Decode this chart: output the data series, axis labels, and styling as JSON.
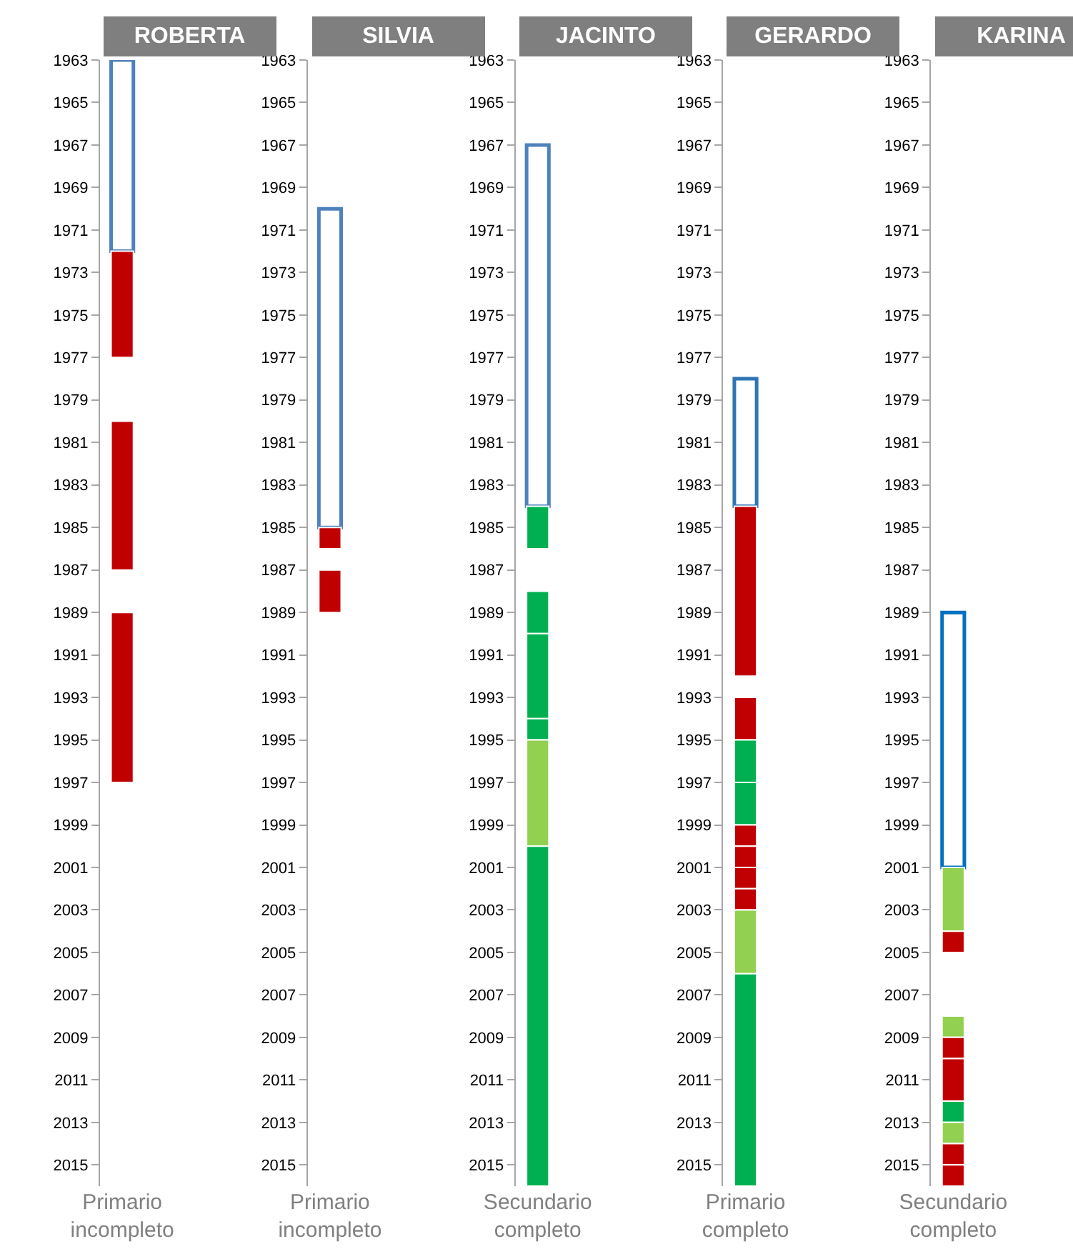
{
  "chart_data": [
    {
      "type": "bar",
      "title": "ROBERTA",
      "categories": [
        "Primario incompleto"
      ],
      "ylim": [
        2016,
        1963
      ],
      "yticks": [
        1963,
        1965,
        1967,
        1969,
        1971,
        1973,
        1975,
        1977,
        1979,
        1981,
        1983,
        1985,
        1987,
        1989,
        1991,
        1993,
        1995,
        1997,
        1999,
        2001,
        2003,
        2005,
        2007,
        2009,
        2011,
        2013,
        2015
      ],
      "series": [
        {
          "color": "#4f81bd",
          "line_style": "solid",
          "base": [
            1963
          ],
          "values": [
            9
          ]
        },
        {
          "color": "#c00000",
          "base": [
            1972
          ],
          "values": [
            5
          ]
        },
        {
          "color": "#c00000",
          "base": [
            1980
          ],
          "values": [
            7
          ]
        },
        {
          "color": "#c00000",
          "base": [
            1989
          ],
          "values": [
            8
          ]
        }
      ]
    },
    {
      "type": "bar",
      "title": "SILVIA",
      "categories": [
        "Primario incompleto"
      ],
      "ylim": [
        2016,
        1963
      ],
      "yticks": [
        1963,
        1965,
        1967,
        1969,
        1971,
        1973,
        1975,
        1977,
        1979,
        1981,
        1983,
        1985,
        1987,
        1989,
        1991,
        1993,
        1995,
        1997,
        1999,
        2001,
        2003,
        2005,
        2007,
        2009,
        2011,
        2013,
        2015
      ],
      "series": [
        {
          "color": "#4f81bd",
          "line_style": "solid",
          "base": [
            1970
          ],
          "values": [
            15
          ]
        },
        {
          "color": "#c00000",
          "base": [
            1985
          ],
          "values": [
            1
          ]
        },
        {
          "color": "#c00000",
          "base": [
            1987
          ],
          "values": [
            2
          ]
        }
      ]
    },
    {
      "type": "bar",
      "title": "JACINTO",
      "categories": [
        "Secundario completo"
      ],
      "ylim": [
        2016,
        1963
      ],
      "yticks": [
        1963,
        1965,
        1967,
        1969,
        1971,
        1973,
        1975,
        1977,
        1979,
        1981,
        1983,
        1985,
        1987,
        1989,
        1991,
        1993,
        1995,
        1997,
        1999,
        2001,
        2003,
        2005,
        2007,
        2009,
        2011,
        2013,
        2015
      ],
      "series": [
        {
          "color": "#4f81bd",
          "line_style": "solid",
          "base": [
            1967
          ],
          "values": [
            17
          ]
        },
        {
          "color": "#00b050",
          "base": [
            1984
          ],
          "values": [
            2
          ]
        },
        {
          "color": "#00b050",
          "base": [
            1988
          ],
          "values": [
            2
          ]
        },
        {
          "color": "#00b050",
          "base": [
            1990
          ],
          "values": [
            4
          ]
        },
        {
          "color": "#00b050",
          "base": [
            1994
          ],
          "values": [
            1
          ]
        },
        {
          "color": "#92d050",
          "base": [
            1995
          ],
          "values": [
            5
          ]
        },
        {
          "color": "#00b050",
          "base": [
            2000
          ],
          "values": [
            16
          ]
        }
      ]
    },
    {
      "type": "bar",
      "title": "GERARDO",
      "categories": [
        "Primario completo"
      ],
      "ylim": [
        2016,
        1963
      ],
      "yticks": [
        1963,
        1965,
        1967,
        1969,
        1971,
        1973,
        1975,
        1977,
        1979,
        1981,
        1983,
        1985,
        1987,
        1989,
        1991,
        1993,
        1995,
        1997,
        1999,
        2001,
        2003,
        2005,
        2007,
        2009,
        2011,
        2013,
        2015
      ],
      "series": [
        {
          "color": "#2e75b6",
          "line_style": "solid",
          "base": [
            1978
          ],
          "values": [
            6
          ]
        },
        {
          "color": "#c00000",
          "base": [
            1984
          ],
          "values": [
            8
          ]
        },
        {
          "color": "#c00000",
          "base": [
            1993
          ],
          "values": [
            2
          ]
        },
        {
          "color": "#00b050",
          "base": [
            1995
          ],
          "values": [
            2
          ]
        },
        {
          "color": "#00b050",
          "base": [
            1997
          ],
          "values": [
            2
          ]
        },
        {
          "color": "#c00000",
          "base": [
            1999
          ],
          "values": [
            1
          ]
        },
        {
          "color": "#c00000",
          "base": [
            2000
          ],
          "values": [
            1
          ]
        },
        {
          "color": "#c00000",
          "base": [
            2001
          ],
          "values": [
            1
          ]
        },
        {
          "color": "#c00000",
          "base": [
            2002
          ],
          "values": [
            1
          ]
        },
        {
          "color": "#92d050",
          "base": [
            2003
          ],
          "values": [
            3
          ]
        },
        {
          "color": "#00b050",
          "base": [
            2006
          ],
          "values": [
            10
          ]
        }
      ]
    },
    {
      "type": "bar",
      "title": "KARINA",
      "categories": [
        "Secundario completo"
      ],
      "ylim": [
        2016,
        1963
      ],
      "yticks": [
        1963,
        1965,
        1967,
        1969,
        1971,
        1973,
        1975,
        1977,
        1979,
        1981,
        1983,
        1985,
        1987,
        1989,
        1991,
        1993,
        1995,
        1997,
        1999,
        2001,
        2003,
        2005,
        2007,
        2009,
        2011,
        2013,
        2015
      ],
      "series": [
        {
          "color": "#0070c0",
          "line_style": "solid",
          "base": [
            1989
          ],
          "values": [
            12
          ]
        },
        {
          "color": "#92d050",
          "base": [
            2001
          ],
          "values": [
            3
          ]
        },
        {
          "color": "#c00000",
          "base": [
            2004
          ],
          "values": [
            1
          ]
        },
        {
          "color": "#92d050",
          "base": [
            2008
          ],
          "values": [
            1
          ]
        },
        {
          "color": "#c00000",
          "base": [
            2009
          ],
          "values": [
            1
          ]
        },
        {
          "color": "#c00000",
          "base": [
            2010
          ],
          "values": [
            2
          ]
        },
        {
          "color": "#00b050",
          "base": [
            2012
          ],
          "values": [
            1
          ]
        },
        {
          "color": "#92d050",
          "base": [
            2013
          ],
          "values": [
            1
          ]
        },
        {
          "color": "#c00000",
          "base": [
            2014
          ],
          "values": [
            1
          ]
        },
        {
          "color": "#c00000",
          "base": [
            2015
          ],
          "values": [
            1
          ]
        }
      ]
    }
  ]
}
